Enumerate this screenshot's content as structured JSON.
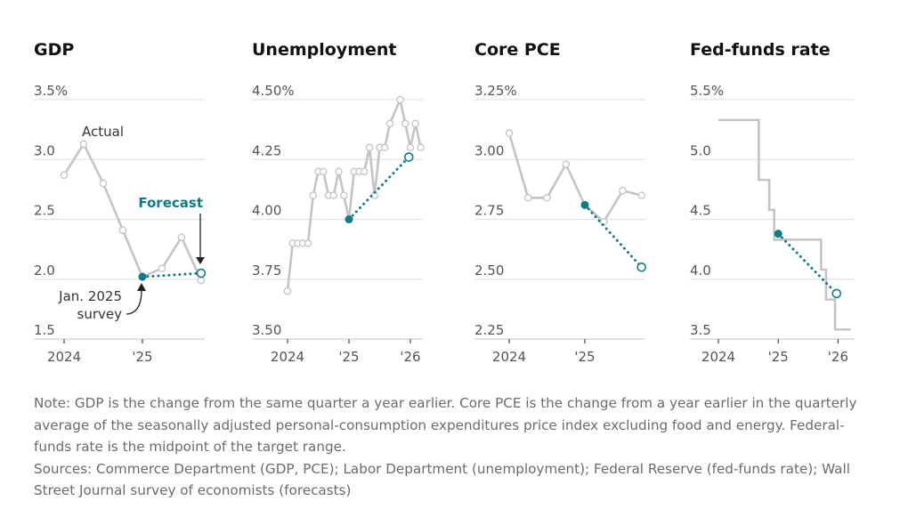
{
  "colors": {
    "actual": "#c4c4c4",
    "forecast": "#0e7c86",
    "grid": "#e2e2e2",
    "text": "#555555",
    "title": "#111111"
  },
  "chart_data": [
    {
      "type": "line",
      "title": "GDP",
      "unit": "%",
      "ylim": [
        1.5,
        3.5
      ],
      "yticks": [
        "3.5%",
        "3.0",
        "2.5",
        "2.0",
        "1.5"
      ],
      "ytick_values": [
        3.5,
        3.0,
        2.5,
        2.0,
        1.5
      ],
      "xticks": [
        "2024",
        "'25"
      ],
      "xtick_months": [
        0,
        12
      ],
      "xlim_months": [
        -4,
        22
      ],
      "actual": {
        "months": [
          0,
          3,
          6,
          9,
          12,
          15,
          18,
          21
        ],
        "values": [
          2.87,
          3.13,
          2.8,
          2.41,
          2.02,
          2.09,
          2.35,
          1.99
        ]
      },
      "forecast": {
        "months": [
          12,
          21
        ],
        "values": [
          2.02,
          2.05
        ]
      },
      "step": false,
      "annotations": {
        "actual": "Actual",
        "forecast": "Forecast",
        "survey_line1": "Jan. 2025",
        "survey_line2": "survey"
      }
    },
    {
      "type": "line",
      "title": "Unemployment",
      "unit": "%",
      "ylim": [
        3.5,
        4.5
      ],
      "yticks": [
        "4.50%",
        "4.25",
        "4.00",
        "3.75",
        "3.50"
      ],
      "ytick_values": [
        4.5,
        4.25,
        4.0,
        3.75,
        3.5
      ],
      "xticks": [
        "2024",
        "'25",
        "'26"
      ],
      "xtick_months": [
        0,
        12,
        24
      ],
      "xlim_months": [
        -7,
        26.5
      ],
      "actual": {
        "months": [
          0,
          1,
          2,
          3,
          4,
          5,
          6,
          7,
          8,
          9,
          10,
          11,
          12,
          13,
          14,
          15,
          16,
          17,
          18,
          19,
          20,
          22,
          23,
          24,
          25,
          26
        ],
        "values": [
          3.7,
          3.9,
          3.9,
          3.9,
          3.9,
          4.1,
          4.2,
          4.2,
          4.1,
          4.1,
          4.2,
          4.1,
          4.0,
          4.2,
          4.2,
          4.2,
          4.3,
          4.1,
          4.3,
          4.3,
          4.4,
          4.5,
          4.4,
          4.3,
          4.4,
          4.3
        ]
      },
      "forecast": {
        "months": [
          12,
          23.7
        ],
        "values": [
          4.0,
          4.26
        ]
      },
      "step": false
    },
    {
      "type": "line",
      "title": "Core PCE",
      "unit": "%",
      "ylim": [
        2.25,
        3.25
      ],
      "yticks": [
        "3.25%",
        "3.00",
        "2.75",
        "2.50",
        "2.25"
      ],
      "ytick_values": [
        3.25,
        3.0,
        2.75,
        2.5,
        2.25
      ],
      "xticks": [
        "2024",
        "'25"
      ],
      "xtick_months": [
        0,
        12
      ],
      "xlim_months": [
        -5,
        21.5
      ],
      "actual": {
        "months": [
          0,
          3,
          6,
          9,
          12,
          15,
          18,
          21
        ],
        "values": [
          3.11,
          2.84,
          2.84,
          2.98,
          2.81,
          2.74,
          2.87,
          2.85
        ]
      },
      "forecast": {
        "months": [
          12,
          21
        ],
        "values": [
          2.81,
          2.55
        ]
      },
      "step": false
    },
    {
      "type": "line",
      "title": "Fed-funds rate",
      "unit": "%",
      "ylim": [
        3.5,
        5.5
      ],
      "yticks": [
        "5.5%",
        "5.0",
        "4.5",
        "4.0",
        "3.5"
      ],
      "ytick_values": [
        5.5,
        5.0,
        4.5,
        4.0,
        3.5
      ],
      "xticks": [
        "2024",
        "'25",
        "'26"
      ],
      "xtick_months": [
        0,
        12,
        24
      ],
      "xlim_months": [
        -5,
        26.5
      ],
      "actual": {
        "months": [
          0,
          8.1,
          10.2,
          11.2,
          20.6,
          21.6,
          23.4,
          26.5
        ],
        "values": [
          5.33,
          4.83,
          4.58,
          4.33,
          4.08,
          3.83,
          3.58,
          3.58
        ]
      },
      "forecast": {
        "months": [
          12,
          23.7
        ],
        "values": [
          4.38,
          3.88
        ]
      },
      "step": true
    }
  ],
  "note": "Note: GDP is the change from the same quarter a year earlier. Core PCE is the change from a year earlier in the quarterly average of the seasonally adjusted personal-consumption expenditures price index excluding food and energy. Federal-funds rate is the midpoint of the target range.",
  "sources": "Sources: Commerce Department (GDP, PCE); Labor Department (unemployment); Federal Reserve (fed-funds rate); Wall Street Journal survey of economists (forecasts)"
}
